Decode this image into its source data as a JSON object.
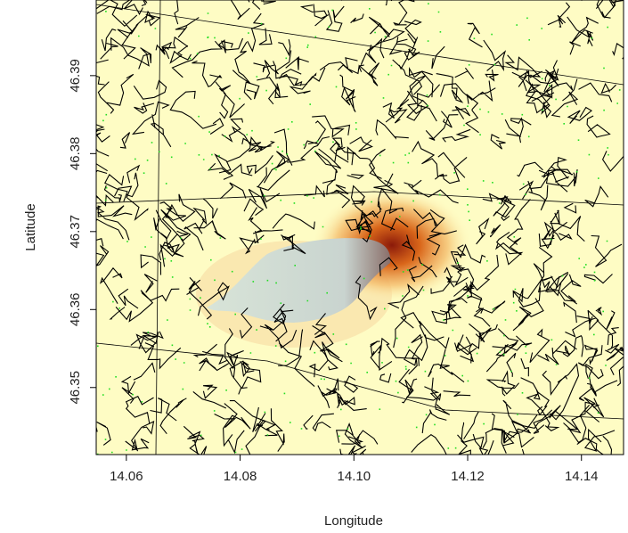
{
  "chart_data": {
    "type": "map",
    "xlabel": "Longitude",
    "ylabel": "Latitude",
    "xlim": [
      14.0547,
      14.1474
    ],
    "ylim": [
      46.3414,
      46.3997
    ],
    "xticks": [
      {
        "value": 14.06,
        "label": "14.06"
      },
      {
        "value": 14.08,
        "label": "14.08"
      },
      {
        "value": 14.1,
        "label": "14.10"
      },
      {
        "value": 14.12,
        "label": "14.12"
      },
      {
        "value": 14.14,
        "label": "14.14"
      }
    ],
    "yticks": [
      46.35,
      46.36,
      46.37,
      46.38,
      46.39
    ]
  }
}
